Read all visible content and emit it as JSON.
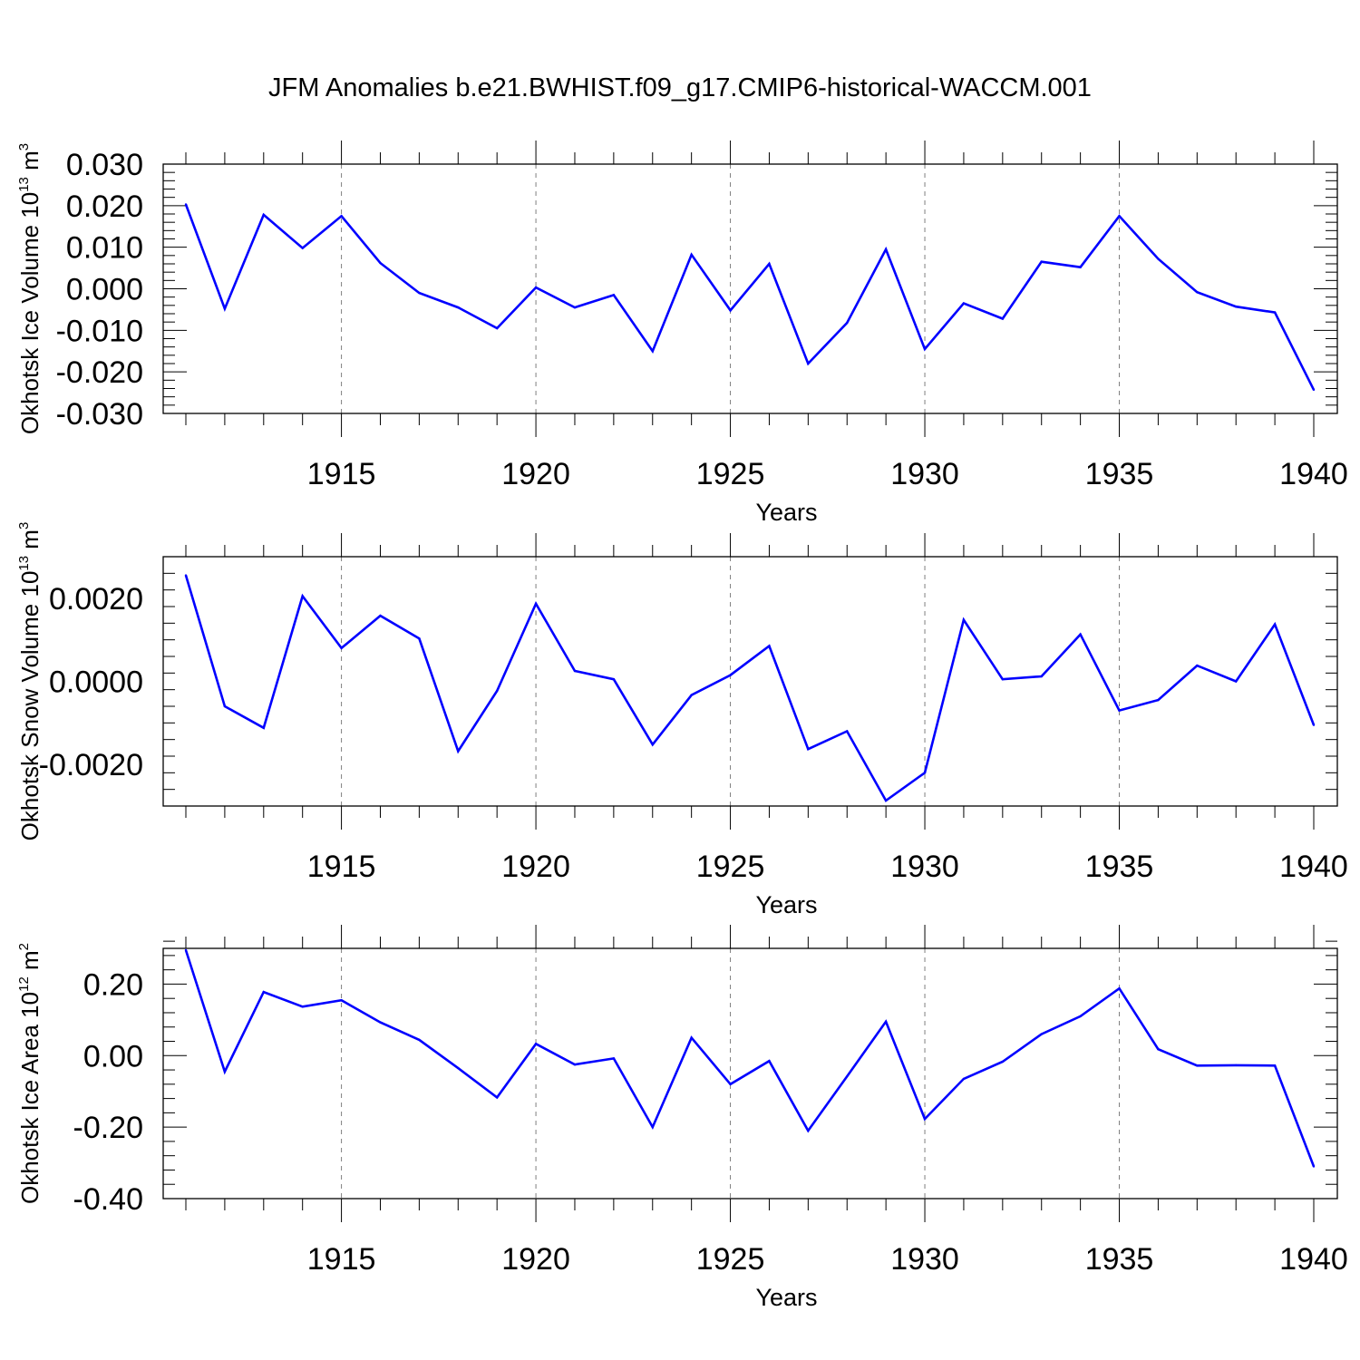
{
  "title": "JFM Anomalies b.e21.BWHIST.f09_g17.CMIP6-historical-WACCM.001",
  "colors": {
    "series": "#0000ff",
    "axes": "#000000",
    "grid": "#7f7f7f",
    "background": "#ffffff"
  },
  "chart_data": [
    {
      "type": "line",
      "title": "JFM Anomalies b.e21.BWHIST.f09_g17.CMIP6-historical-WACCM.001",
      "xlabel": "Years",
      "ylabel": "Okhotsk Ice Volume 10",
      "ylabel_exp": "13",
      "ylabel_unit": "m",
      "ylabel_unit_exp": "3",
      "x": [
        1911,
        1912,
        1913,
        1914,
        1915,
        1916,
        1917,
        1918,
        1919,
        1920,
        1921,
        1922,
        1923,
        1924,
        1925,
        1926,
        1927,
        1928,
        1929,
        1930,
        1931,
        1932,
        1933,
        1934,
        1935,
        1936,
        1937,
        1938,
        1939,
        1940
      ],
      "values": [
        0.0203,
        -0.0048,
        0.0178,
        0.0098,
        0.0175,
        0.0062,
        -0.001,
        -0.0045,
        -0.0095,
        0.0003,
        -0.0045,
        -0.0015,
        -0.015,
        0.0082,
        -0.0052,
        0.006,
        -0.018,
        -0.0082,
        0.0095,
        -0.0145,
        -0.0035,
        -0.0072,
        0.0065,
        0.0052,
        0.0175,
        0.0072,
        -0.0008,
        -0.0043,
        -0.0057,
        -0.0243
      ],
      "xlim": [
        1911,
        1940
      ],
      "ylim": [
        -0.03,
        0.03
      ],
      "xticks": [
        "1915",
        "1920",
        "1925",
        "1930",
        "1935",
        "1940"
      ],
      "xtick_values": [
        1915,
        1920,
        1925,
        1930,
        1935,
        1940
      ],
      "yticks": [
        "0.030",
        "0.020",
        "0.010",
        "0.000",
        "-0.010",
        "-0.020",
        "-0.030"
      ],
      "ytick_values": [
        0.03,
        0.02,
        0.01,
        0.0,
        -0.01,
        -0.02,
        -0.03
      ],
      "grid": "vertical dashed at labeled years"
    },
    {
      "type": "line",
      "xlabel": "Years",
      "ylabel": "Okhotsk Snow Volume 10",
      "ylabel_exp": "13",
      "ylabel_unit": "m",
      "ylabel_unit_exp": "3",
      "x": [
        1911,
        1912,
        1913,
        1914,
        1915,
        1916,
        1917,
        1918,
        1919,
        1920,
        1921,
        1922,
        1923,
        1924,
        1925,
        1926,
        1927,
        1928,
        1929,
        1930,
        1931,
        1932,
        1933,
        1934,
        1935,
        1936,
        1937,
        1938,
        1939,
        1940
      ],
      "values": [
        0.00255,
        -0.0006,
        -0.00112,
        0.00205,
        0.0008,
        0.00158,
        0.00103,
        -0.00168,
        -0.00023,
        0.00187,
        0.00025,
        5e-05,
        -0.00152,
        -0.00033,
        0.00015,
        0.00085,
        -0.00163,
        -0.0012,
        -0.00287,
        -0.0022,
        0.00148,
        5e-05,
        0.00012,
        0.00113,
        -0.0007,
        -0.00045,
        0.00038,
        0.0,
        0.00137,
        -0.00105
      ],
      "xlim": [
        1911,
        1940
      ],
      "ylim": [
        -0.003,
        0.003
      ],
      "xticks": [
        "1915",
        "1920",
        "1925",
        "1930",
        "1935",
        "1940"
      ],
      "xtick_values": [
        1915,
        1920,
        1925,
        1930,
        1935,
        1940
      ],
      "yticks": [
        "0.0020",
        "0.0000",
        "-0.0020"
      ],
      "ytick_values": [
        0.002,
        0.0,
        -0.002
      ],
      "grid": "vertical dashed at labeled years"
    },
    {
      "type": "line",
      "xlabel": "Years",
      "ylabel": "Okhotsk Ice Area 10",
      "ylabel_exp": "12",
      "ylabel_unit": "m",
      "ylabel_unit_exp": "2",
      "x": [
        1911,
        1912,
        1913,
        1914,
        1915,
        1916,
        1917,
        1918,
        1919,
        1920,
        1921,
        1922,
        1923,
        1924,
        1925,
        1926,
        1927,
        1928,
        1929,
        1930,
        1931,
        1932,
        1933,
        1934,
        1935,
        1936,
        1937,
        1938,
        1939,
        1940
      ],
      "values": [
        0.295,
        -0.045,
        0.178,
        0.137,
        0.155,
        0.093,
        0.044,
        -0.035,
        -0.117,
        0.033,
        -0.025,
        -0.008,
        -0.2,
        0.05,
        -0.08,
        -0.015,
        -0.21,
        -0.058,
        0.095,
        -0.177,
        -0.065,
        -0.017,
        0.06,
        0.11,
        0.188,
        0.018,
        -0.028,
        -0.027,
        -0.028,
        -0.31
      ],
      "xlim": [
        1911,
        1940
      ],
      "ylim": [
        -0.4,
        0.3
      ],
      "xticks": [
        "1915",
        "1920",
        "1925",
        "1930",
        "1935",
        "1940"
      ],
      "xtick_values": [
        1915,
        1920,
        1925,
        1930,
        1935,
        1940
      ],
      "yticks": [
        "0.20",
        "0.00",
        "-0.20",
        "-0.40"
      ],
      "ytick_values": [
        0.2,
        0.0,
        -0.2,
        -0.4
      ],
      "grid": "vertical dashed at labeled years"
    }
  ]
}
